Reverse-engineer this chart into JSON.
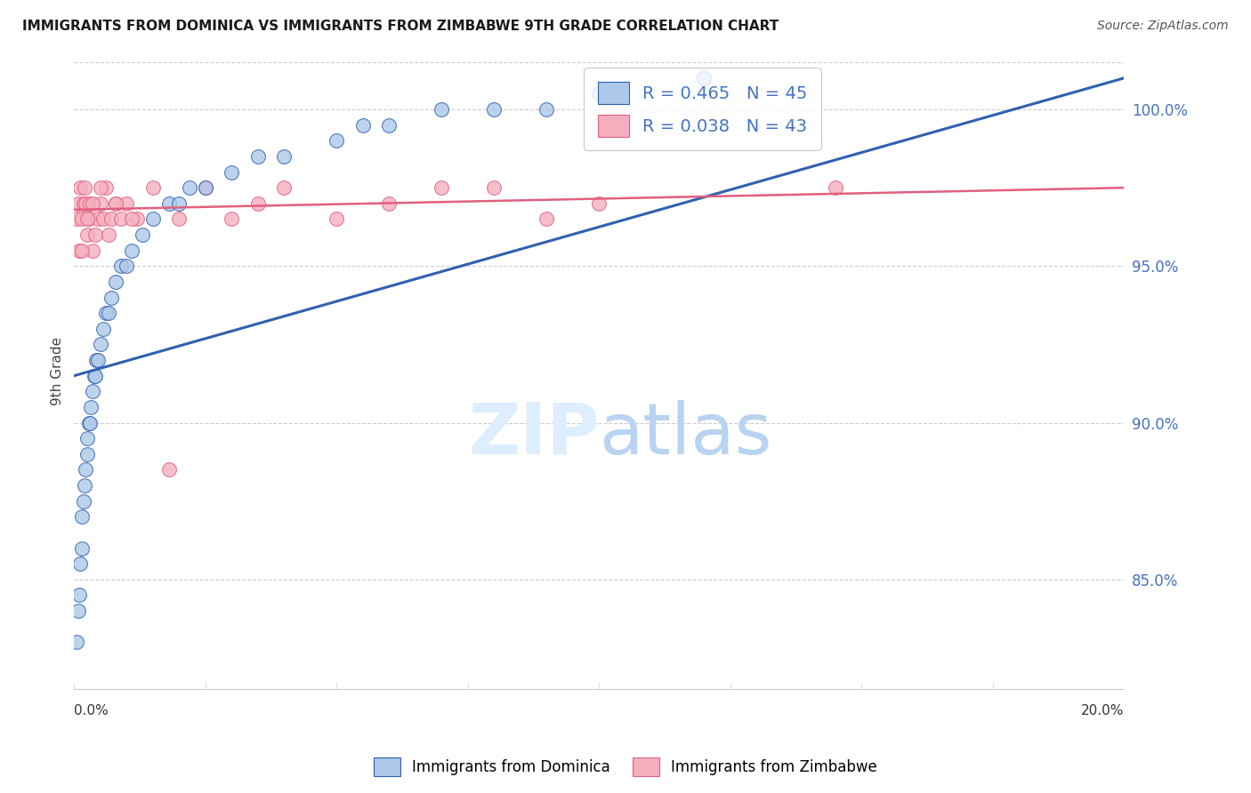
{
  "title": "IMMIGRANTS FROM DOMINICA VS IMMIGRANTS FROM ZIMBABWE 9TH GRADE CORRELATION CHART",
  "source": "Source: ZipAtlas.com",
  "ylabel": "9th Grade",
  "x_min": 0.0,
  "x_max": 20.0,
  "y_min": 81.5,
  "y_max": 101.8,
  "y_ticks": [
    85.0,
    90.0,
    95.0,
    100.0
  ],
  "legend_r1": "R = 0.465",
  "legend_n1": "N = 45",
  "legend_r2": "R = 0.038",
  "legend_n2": "N = 43",
  "blue_color": "#adc8e8",
  "pink_color": "#f5b0c0",
  "blue_line_color": "#3060b0",
  "pink_line_color": "#e06080",
  "dominica_x": [
    0.05,
    0.08,
    0.1,
    0.12,
    0.15,
    0.15,
    0.18,
    0.2,
    0.22,
    0.25,
    0.25,
    0.28,
    0.3,
    0.32,
    0.35,
    0.38,
    0.4,
    0.42,
    0.45,
    0.5,
    0.55,
    0.6,
    0.65,
    0.7,
    0.8,
    0.9,
    1.0,
    1.1,
    1.3,
    1.5,
    1.8,
    2.0,
    2.2,
    2.5,
    3.0,
    3.5,
    4.0,
    5.0,
    5.5,
    6.0,
    7.0,
    8.0,
    9.0,
    10.0,
    12.0
  ],
  "dominica_y": [
    83.0,
    84.0,
    84.5,
    85.5,
    86.0,
    87.0,
    87.5,
    88.0,
    88.5,
    89.0,
    89.5,
    90.0,
    90.0,
    90.5,
    91.0,
    91.5,
    91.5,
    92.0,
    92.0,
    92.5,
    93.0,
    93.5,
    93.5,
    94.0,
    94.5,
    95.0,
    95.0,
    95.5,
    96.0,
    96.5,
    97.0,
    97.0,
    97.5,
    97.5,
    98.0,
    98.5,
    98.5,
    99.0,
    99.5,
    99.5,
    100.0,
    100.0,
    100.0,
    100.5,
    101.0
  ],
  "zimbabwe_x": [
    0.05,
    0.08,
    0.1,
    0.12,
    0.15,
    0.18,
    0.2,
    0.22,
    0.25,
    0.28,
    0.3,
    0.35,
    0.4,
    0.45,
    0.5,
    0.55,
    0.6,
    0.7,
    0.8,
    0.9,
    1.0,
    1.2,
    1.5,
    2.0,
    2.5,
    3.0,
    3.5,
    4.0,
    5.0,
    6.0,
    7.0,
    8.0,
    9.0,
    10.0,
    14.5,
    0.15,
    0.25,
    0.35,
    0.5,
    0.65,
    0.8,
    1.1,
    1.8
  ],
  "zimbabwe_y": [
    96.5,
    97.0,
    95.5,
    97.5,
    96.5,
    97.0,
    97.5,
    97.0,
    96.0,
    96.5,
    97.0,
    95.5,
    96.0,
    96.5,
    97.0,
    96.5,
    97.5,
    96.5,
    97.0,
    96.5,
    97.0,
    96.5,
    97.5,
    96.5,
    97.5,
    96.5,
    97.0,
    97.5,
    96.5,
    97.0,
    97.5,
    97.5,
    96.5,
    97.0,
    97.5,
    95.5,
    96.5,
    97.0,
    97.5,
    96.0,
    97.0,
    96.5,
    88.5
  ],
  "blue_trend_x0": 0.0,
  "blue_trend_y0": 91.5,
  "blue_trend_x1": 20.0,
  "blue_trend_y1": 101.0,
  "pink_trend_x0": 0.0,
  "pink_trend_y0": 96.8,
  "pink_trend_x1": 20.0,
  "pink_trend_y1": 97.5
}
